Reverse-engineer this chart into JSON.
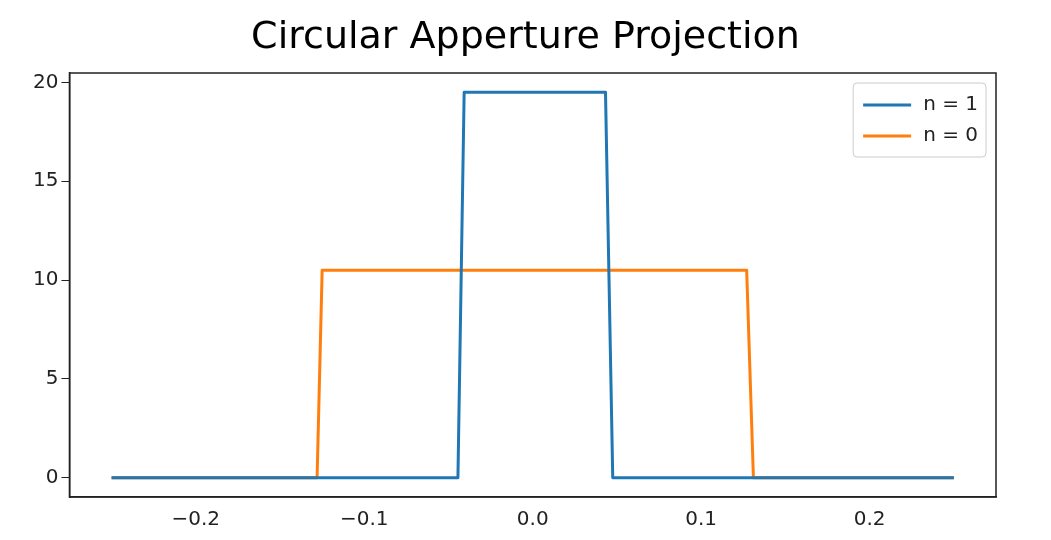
{
  "chart_data": {
    "type": "line",
    "title": "Circular Apperture Projection",
    "series": [
      {
        "name": "n = 1",
        "color": "#1f77b4",
        "x": [
          -0.25,
          -0.0444,
          -0.0407,
          0.0432,
          0.0475,
          0.25
        ],
        "values": [
          0,
          0,
          19.5,
          19.5,
          0,
          0
        ]
      },
      {
        "name": "n = 0",
        "color": "#ff7f0e",
        "x": [
          -0.25,
          -0.128,
          -0.125,
          0.127,
          0.131,
          0.25
        ],
        "values": [
          0,
          0,
          10.5,
          10.5,
          0,
          0
        ]
      }
    ],
    "xlim": [
      -0.275,
      0.275
    ],
    "ylim": [
      -0.975,
      20.475
    ],
    "xticks": [
      {
        "value": -0.2,
        "label": "−0.2"
      },
      {
        "value": -0.1,
        "label": "−0.1"
      },
      {
        "value": 0,
        "label": "0.0"
      },
      0.1,
      0.2
    ],
    "yticks": [
      0,
      5,
      10,
      15,
      20
    ],
    "grid": false,
    "legend": "top right"
  }
}
